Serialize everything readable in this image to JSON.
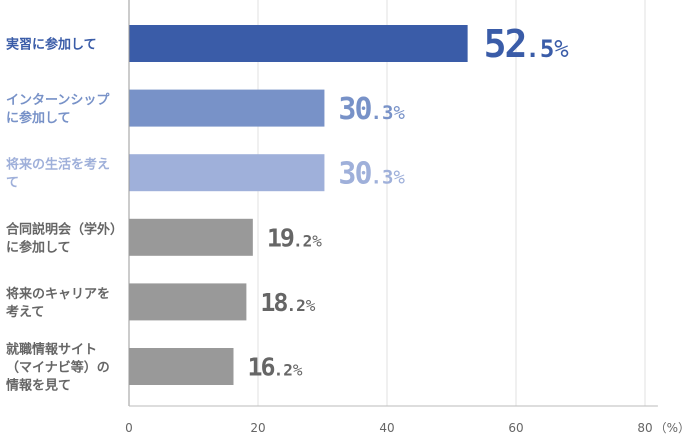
{
  "chart_data": {
    "type": "bar",
    "orientation": "horizontal",
    "categories": [
      [
        "実習に参加して"
      ],
      [
        "インターンシップ",
        "に参加して"
      ],
      [
        "将来の生活を考え",
        "て"
      ],
      [
        "合同説明会（学外）",
        "に参加して"
      ],
      [
        "将来のキャリアを",
        "考えて"
      ],
      [
        "就職情報サイト",
        "（マイナビ等）の",
        "情報を見て"
      ]
    ],
    "values": [
      52.5,
      30.3,
      30.3,
      19.2,
      18.2,
      16.2
    ],
    "value_labels": [
      {
        "int": "52",
        "dec": ".5",
        "unit": "%"
      },
      {
        "int": "30",
        "dec": ".3",
        "unit": "%"
      },
      {
        "int": "30",
        "dec": ".3",
        "unit": "%"
      },
      {
        "int": "19",
        "dec": ".2",
        "unit": "%"
      },
      {
        "int": "18",
        "dec": ".2",
        "unit": "%"
      },
      {
        "int": "16",
        "dec": ".2",
        "unit": "%"
      }
    ],
    "colors": [
      "#3a5ca8",
      "#7892c8",
      "#9fb0da",
      "#999999",
      "#999999",
      "#999999"
    ],
    "label_colors": [
      "#3a5ca8",
      "#7892c8",
      "#9fb0da",
      "#666666",
      "#666666",
      "#666666"
    ],
    "xticks": [
      "0",
      "20",
      "40",
      "60",
      "80"
    ],
    "xtick_values": [
      0,
      20,
      40,
      60,
      80
    ],
    "xlim": [
      0,
      85
    ],
    "xunit": "（%）",
    "grid": true,
    "title": "",
    "xlabel": "",
    "ylabel": ""
  }
}
